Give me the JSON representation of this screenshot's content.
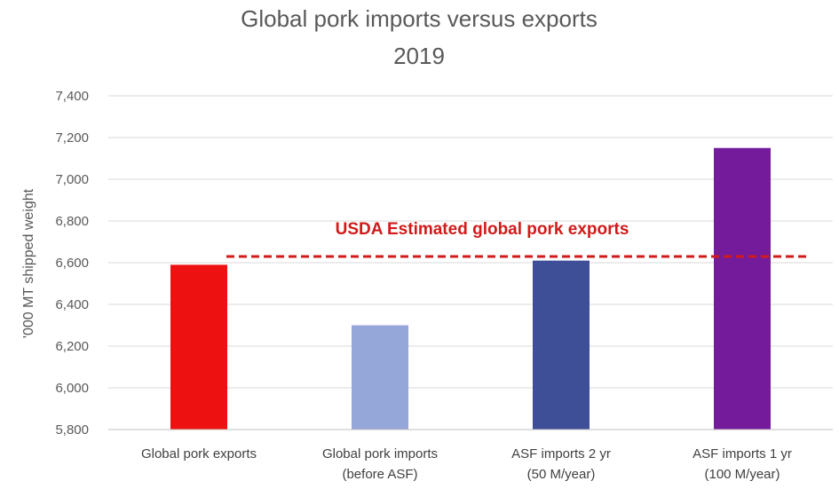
{
  "chart_data": {
    "type": "bar",
    "title": "Global pork imports versus exports",
    "subtitle": "2019",
    "ylabel": "'000 MT shipped weight",
    "xlabel": "",
    "ylim": [
      5800,
      7400
    ],
    "yticks": [
      "5,800",
      "6,000",
      "6,200",
      "6,400",
      "6,600",
      "6,800",
      "7,000",
      "7,200",
      "7,400"
    ],
    "ytick_values": [
      5800,
      6000,
      6200,
      6400,
      6600,
      6800,
      7000,
      7200,
      7400
    ],
    "grid": true,
    "categories": [
      [
        "Global pork exports"
      ],
      [
        "Global pork imports",
        "(before ASF)"
      ],
      [
        "ASF imports 2 yr",
        "(50 M/year)"
      ],
      [
        "ASF imports 1 yr",
        "(100 M/year)"
      ]
    ],
    "values": [
      6590,
      6300,
      6610,
      7150
    ],
    "colors": [
      "#ee1111",
      "#95a6d9",
      "#3f4f97",
      "#741b9c"
    ],
    "reference_line": {
      "label": "USDA Estimated global pork exports",
      "value": 6630,
      "color": "#d21a1a"
    }
  }
}
